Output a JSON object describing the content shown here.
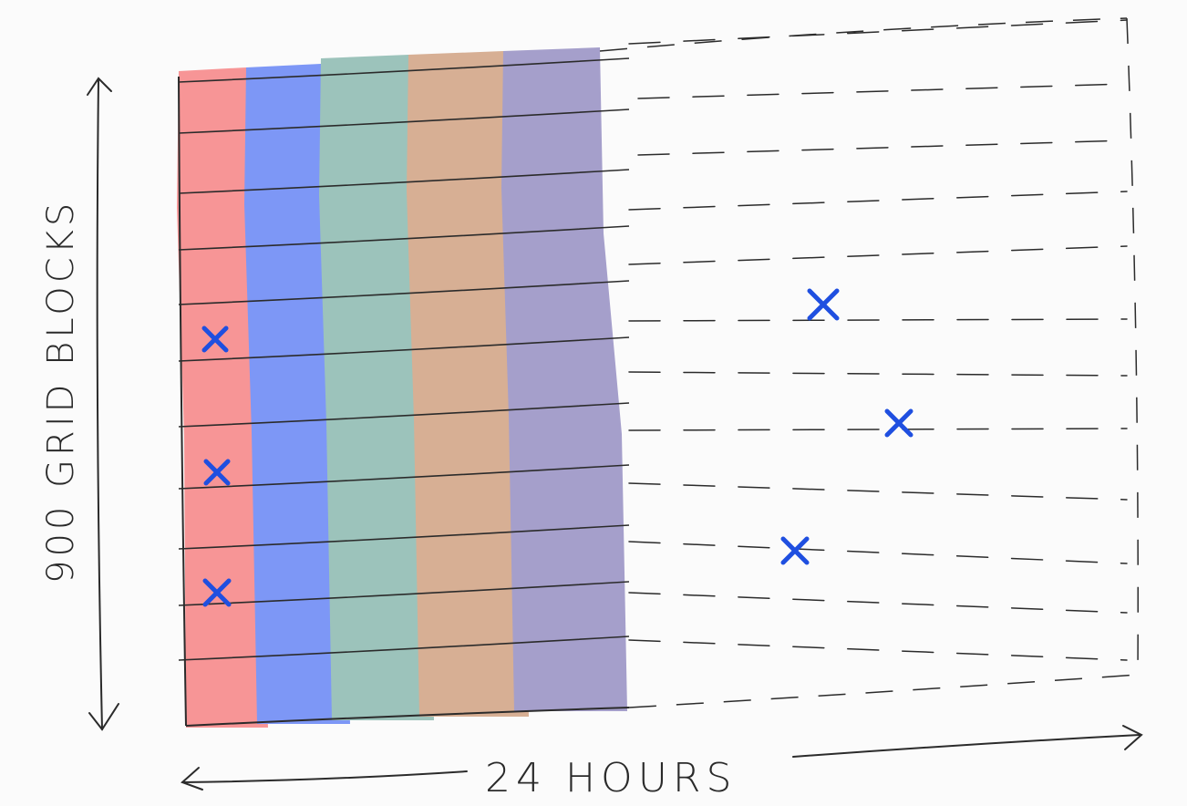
{
  "labels": {
    "vertical_axis": "900 GRID BLOCKS",
    "horizontal_axis": "24 HOURS"
  },
  "columns": [
    {
      "color": "#f79596"
    },
    {
      "color": "#7d97f6"
    },
    {
      "color": "#9cc3bb"
    },
    {
      "color": "#d7af94"
    },
    {
      "color": "#a59fcb"
    }
  ],
  "marker_color": "#1f4fe0",
  "line_color": "#2b2b2b"
}
